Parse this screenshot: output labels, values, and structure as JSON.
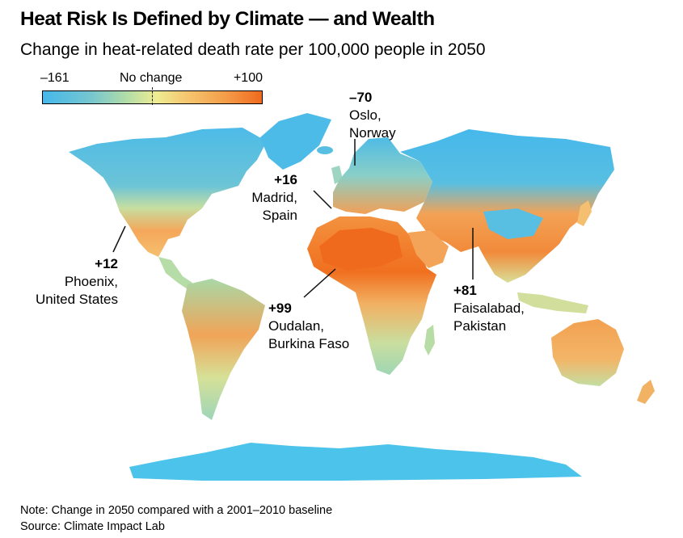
{
  "title": "Heat Risk Is Defined by Climate — and Wealth",
  "subtitle": "Change in heat-related death rate per 100,000 people in 2050",
  "legend": {
    "min_label": "–161",
    "mid_label": "No change",
    "max_label": "+100",
    "min_value": -161,
    "max_value": 100,
    "colors": [
      "#45b8ea",
      "#76c6cf",
      "#b1dca8",
      "#eeec92",
      "#f5c66f",
      "#f49b48",
      "#f06a1e"
    ]
  },
  "annotations": [
    {
      "value": "–70",
      "place": "Oslo,",
      "place2": "Norway"
    },
    {
      "value": "+16",
      "place": "Madrid,",
      "place2": "Spain"
    },
    {
      "value": "+12",
      "place": "Phoenix,",
      "place2": "United States"
    },
    {
      "value": "+99",
      "place": "Oudalan,",
      "place2": "Burkina Faso"
    },
    {
      "value": "+81",
      "place": "Faisalabad,",
      "place2": "Pakistan"
    }
  ],
  "footer": {
    "note": "Note: Change in 2050 compared with a 2001–2010 baseline",
    "source": "Source: Climate Impact Lab"
  }
}
